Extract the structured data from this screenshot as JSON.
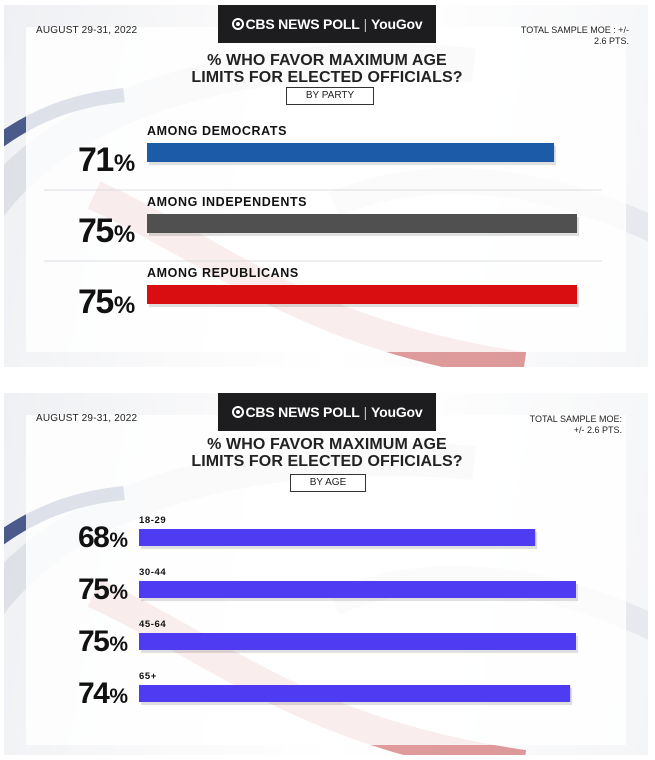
{
  "panels": [
    {
      "date": "AUGUST 29-31, 2022",
      "brand": {
        "cbs": "CBS NEWS POLL",
        "partner": "YouGov"
      },
      "moe_lines": [
        "TOTAL SAMPLE MOE : +/-",
        "2.6 PTS."
      ],
      "title_lines": [
        "% WHO FAVOR MAXIMUM AGE",
        "LIMITS FOR ELECTED OFFICIALS?"
      ],
      "subtitle": "BY PARTY"
    },
    {
      "date": "AUGUST 29-31, 2022",
      "brand": {
        "cbs": "CBS NEWS POLL",
        "partner": "YouGov"
      },
      "moe_lines": [
        "TOTAL SAMPLE MOE:",
        "+/- 2.6 PTS."
      ],
      "title_lines": [
        "% WHO FAVOR MAXIMUM AGE",
        "LIMITS FOR ELECTED OFFICIALS?"
      ],
      "subtitle": "BY AGE"
    }
  ],
  "chart_data": [
    {
      "type": "bar",
      "orientation": "horizontal",
      "title": "% WHO FAVOR MAXIMUM AGE LIMITS FOR ELECTED OFFICIALS?",
      "subtitle": "BY PARTY",
      "categories": [
        "AMONG DEMOCRATS",
        "AMONG INDEPENDENTS",
        "AMONG REPUBLICANS"
      ],
      "values": [
        71,
        75,
        75
      ],
      "value_labels": [
        "71",
        "75",
        "75"
      ],
      "value_suffix": "%",
      "colors": [
        "#1b5ba8",
        "#505050",
        "#d80e10"
      ],
      "xlim": [
        0,
        75
      ],
      "grid": false
    },
    {
      "type": "bar",
      "orientation": "horizontal",
      "title": "% WHO FAVOR MAXIMUM AGE LIMITS FOR ELECTED OFFICIALS?",
      "subtitle": "BY AGE",
      "categories": [
        "18-29",
        "30-44",
        "45-64",
        "65+"
      ],
      "values": [
        68,
        75,
        75,
        74
      ],
      "value_labels": [
        "68",
        "75",
        "75",
        "74"
      ],
      "value_suffix": "%",
      "colors": [
        "#4f3cf2",
        "#4f3cf2",
        "#4f3cf2",
        "#4f3cf2"
      ],
      "xlim": [
        0,
        75
      ],
      "grid": false
    }
  ]
}
